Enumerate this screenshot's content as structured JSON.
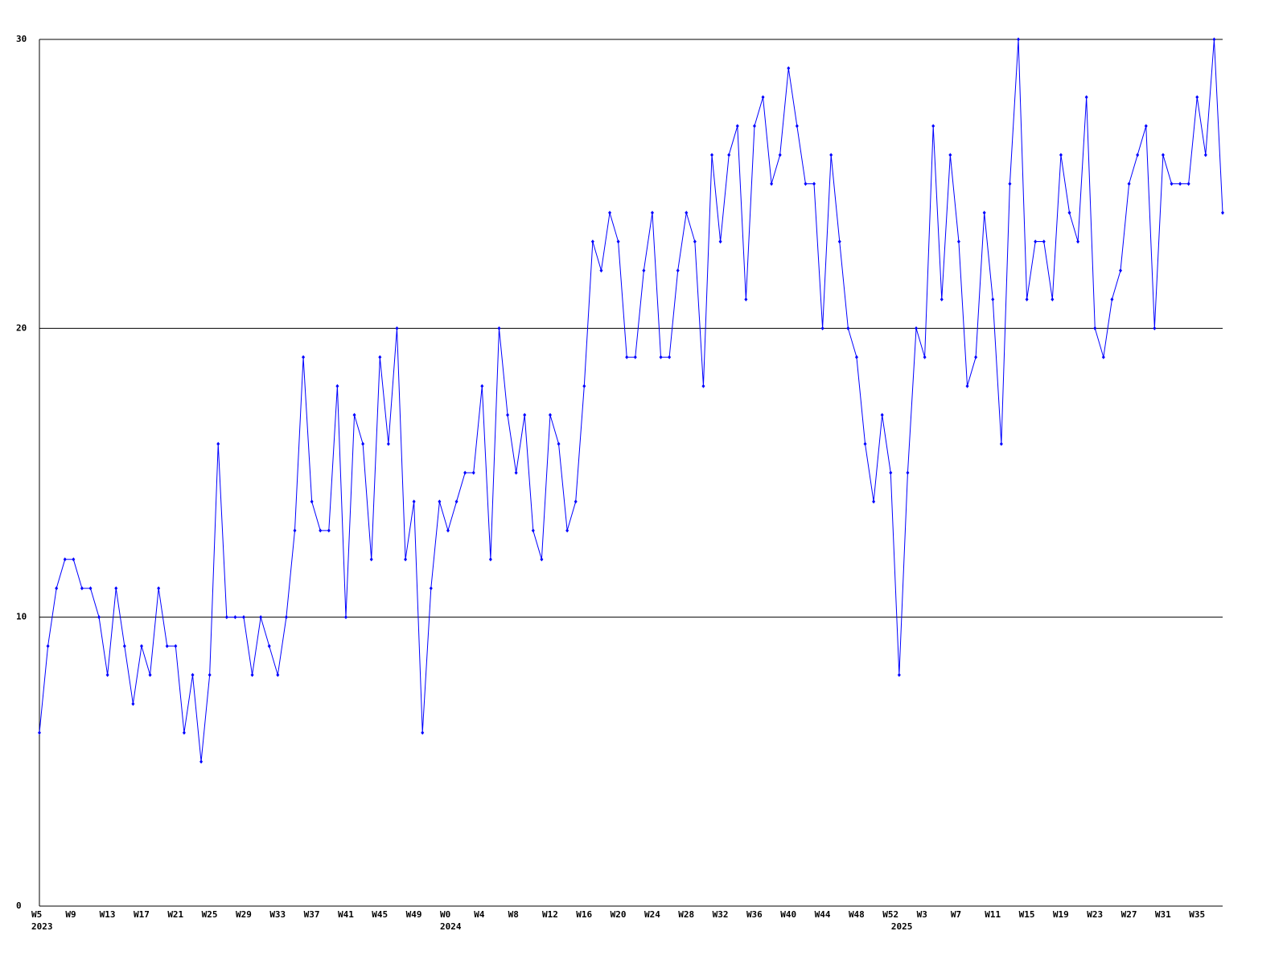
{
  "chart_data": {
    "type": "line",
    "categories": [
      "W5",
      null,
      null,
      null,
      "W9",
      null,
      null,
      null,
      "W13",
      null,
      null,
      null,
      "W17",
      null,
      null,
      null,
      "W21",
      null,
      null,
      null,
      "W25",
      null,
      null,
      null,
      "W29",
      null,
      null,
      null,
      "W33",
      null,
      null,
      null,
      "W37",
      null,
      null,
      null,
      "W41",
      null,
      null,
      null,
      "W45",
      null,
      null,
      null,
      "W49",
      null,
      null,
      null,
      "W0",
      null,
      null,
      null,
      "W4",
      null,
      null,
      null,
      "W8",
      null,
      null,
      null,
      "W12",
      null,
      null,
      null,
      "W16",
      null,
      null,
      null,
      "W20",
      null,
      null,
      null,
      "W24",
      null,
      null,
      null,
      "W28",
      null,
      null,
      null,
      "W32",
      null,
      null,
      null,
      "W36",
      null,
      null,
      null,
      "W40",
      null,
      null,
      null,
      "W44",
      null,
      null,
      null,
      "W48",
      null,
      null,
      null,
      "W52",
      null,
      null,
      null,
      "W3",
      null,
      null,
      null,
      "W7",
      null,
      null,
      null,
      "W11",
      null,
      null,
      null,
      "W15",
      null,
      null,
      null,
      "W19",
      null,
      null,
      null,
      "W23",
      null,
      null,
      null,
      "W27",
      null,
      null,
      null,
      "W31",
      null,
      null,
      null,
      "W35",
      null,
      null,
      null
    ],
    "category_years": [
      "2023",
      null,
      null,
      null,
      null,
      null,
      null,
      null,
      null,
      null,
      null,
      null,
      null,
      null,
      null,
      null,
      null,
      null,
      null,
      null,
      null,
      null,
      null,
      null,
      null,
      null,
      null,
      null,
      null,
      null,
      null,
      null,
      null,
      null,
      null,
      null,
      null,
      null,
      null,
      null,
      null,
      null,
      null,
      null,
      null,
      null,
      null,
      null,
      "2024",
      null,
      null,
      null,
      null,
      null,
      null,
      null,
      null,
      null,
      null,
      null,
      null,
      null,
      null,
      null,
      null,
      null,
      null,
      null,
      null,
      null,
      null,
      null,
      null,
      null,
      null,
      null,
      null,
      null,
      null,
      null,
      null,
      null,
      null,
      null,
      null,
      null,
      null,
      null,
      null,
      null,
      null,
      null,
      null,
      null,
      null,
      null,
      null,
      null,
      null,
      null,
      null,
      "2025",
      null,
      null,
      null,
      null,
      null,
      null,
      null,
      null,
      null,
      null,
      null,
      null,
      null,
      null,
      null,
      null,
      null,
      null,
      null,
      null,
      null,
      null,
      null,
      null,
      null,
      null,
      null,
      null,
      null,
      null,
      null,
      null,
      null,
      null,
      null,
      null,
      null,
      null
    ],
    "series": [
      {
        "color": "#0000ff",
        "values": [
          6,
          9,
          11,
          12,
          12,
          11,
          11,
          10,
          8,
          11,
          9,
          7,
          9,
          8,
          11,
          9,
          9,
          6,
          8,
          5,
          8,
          16,
          10,
          10,
          10,
          8,
          10,
          9,
          8,
          10,
          13,
          19,
          14,
          13,
          13,
          18,
          10,
          17,
          16,
          12,
          19,
          16,
          20,
          12,
          14,
          6,
          11,
          14,
          13,
          14,
          15,
          15,
          18,
          12,
          20,
          17,
          15,
          17,
          13,
          12,
          17,
          16,
          13,
          14,
          18,
          23,
          22,
          24,
          23,
          19,
          19,
          22,
          24,
          19,
          19,
          22,
          24,
          23,
          18,
          26,
          23,
          26,
          27,
          21,
          27,
          28,
          25,
          26,
          29,
          27,
          25,
          25,
          20,
          26,
          23,
          20,
          19,
          16,
          14,
          17,
          15,
          8,
          15,
          20,
          19,
          27,
          21,
          26,
          23,
          18,
          19,
          24,
          21,
          16,
          25,
          30,
          21,
          23,
          23,
          21,
          26,
          24,
          23,
          28,
          20,
          19,
          21,
          22,
          25,
          26,
          27,
          20,
          26,
          25,
          25,
          25,
          28,
          26,
          30,
          24
        ]
      }
    ],
    "ylim": [
      0,
      30
    ],
    "yticks": [
      0,
      10,
      20,
      30
    ],
    "grid": true
  }
}
